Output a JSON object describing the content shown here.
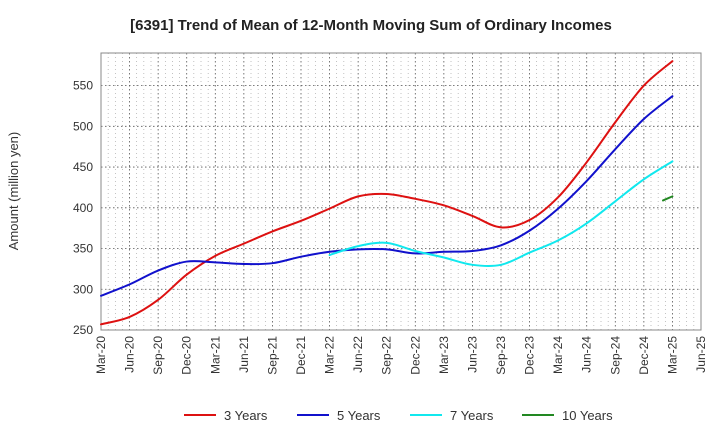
{
  "chart_data": {
    "type": "line",
    "title": "[6391]  Trend of Mean of 12-Month Moving Sum of Ordinary Incomes",
    "xlabel": "",
    "ylabel": "Amount (million yen)",
    "ylim": [
      250,
      590
    ],
    "yticks": [
      250,
      300,
      350,
      400,
      450,
      500,
      550
    ],
    "x_tick_labels": [
      "Mar-20",
      "Jun-20",
      "Sep-20",
      "Dec-20",
      "Mar-21",
      "Jun-21",
      "Sep-21",
      "Dec-21",
      "Mar-22",
      "Jun-22",
      "Sep-22",
      "Dec-22",
      "Mar-23",
      "Jun-23",
      "Sep-23",
      "Dec-23",
      "Mar-24",
      "Jun-24",
      "Sep-24",
      "Dec-24",
      "Mar-25",
      "Jun-25"
    ],
    "grid": true,
    "legend_position": "bottom",
    "series": [
      {
        "name": "3 Years",
        "color": "#dd1111",
        "points": [
          [
            0,
            257
          ],
          [
            1,
            266
          ],
          [
            2,
            287
          ],
          [
            3,
            318
          ],
          [
            4,
            341
          ],
          [
            5,
            356
          ],
          [
            6,
            371
          ],
          [
            7,
            384
          ],
          [
            8,
            399
          ],
          [
            9,
            414
          ],
          [
            10,
            417
          ],
          [
            11,
            411
          ],
          [
            12,
            403
          ],
          [
            13,
            390
          ],
          [
            14,
            376
          ],
          [
            15,
            385
          ],
          [
            16,
            413
          ],
          [
            17,
            456
          ],
          [
            18,
            505
          ],
          [
            19,
            550
          ],
          [
            20,
            580
          ]
        ]
      },
      {
        "name": "5 Years",
        "color": "#1111cc",
        "points": [
          [
            0,
            292
          ],
          [
            1,
            306
          ],
          [
            2,
            323
          ],
          [
            3,
            334
          ],
          [
            4,
            333
          ],
          [
            5,
            331
          ],
          [
            6,
            332
          ],
          [
            7,
            340
          ],
          [
            8,
            346
          ],
          [
            9,
            349
          ],
          [
            10,
            349
          ],
          [
            11,
            344
          ],
          [
            12,
            346
          ],
          [
            13,
            347
          ],
          [
            14,
            354
          ],
          [
            15,
            372
          ],
          [
            16,
            399
          ],
          [
            17,
            433
          ],
          [
            18,
            472
          ],
          [
            19,
            509
          ],
          [
            20,
            537
          ]
        ]
      },
      {
        "name": "7 Years",
        "color": "#11e8ee",
        "points": [
          [
            8,
            342
          ],
          [
            9,
            353
          ],
          [
            10,
            357
          ],
          [
            11,
            347
          ],
          [
            12,
            339
          ],
          [
            13,
            330
          ],
          [
            14,
            330
          ],
          [
            15,
            345
          ],
          [
            16,
            360
          ],
          [
            17,
            381
          ],
          [
            18,
            408
          ],
          [
            19,
            435
          ],
          [
            20,
            457
          ]
        ]
      },
      {
        "name": "10 Years",
        "color": "#228822",
        "points": [
          [
            19.67,
            409
          ],
          [
            20,
            414
          ]
        ]
      }
    ]
  }
}
